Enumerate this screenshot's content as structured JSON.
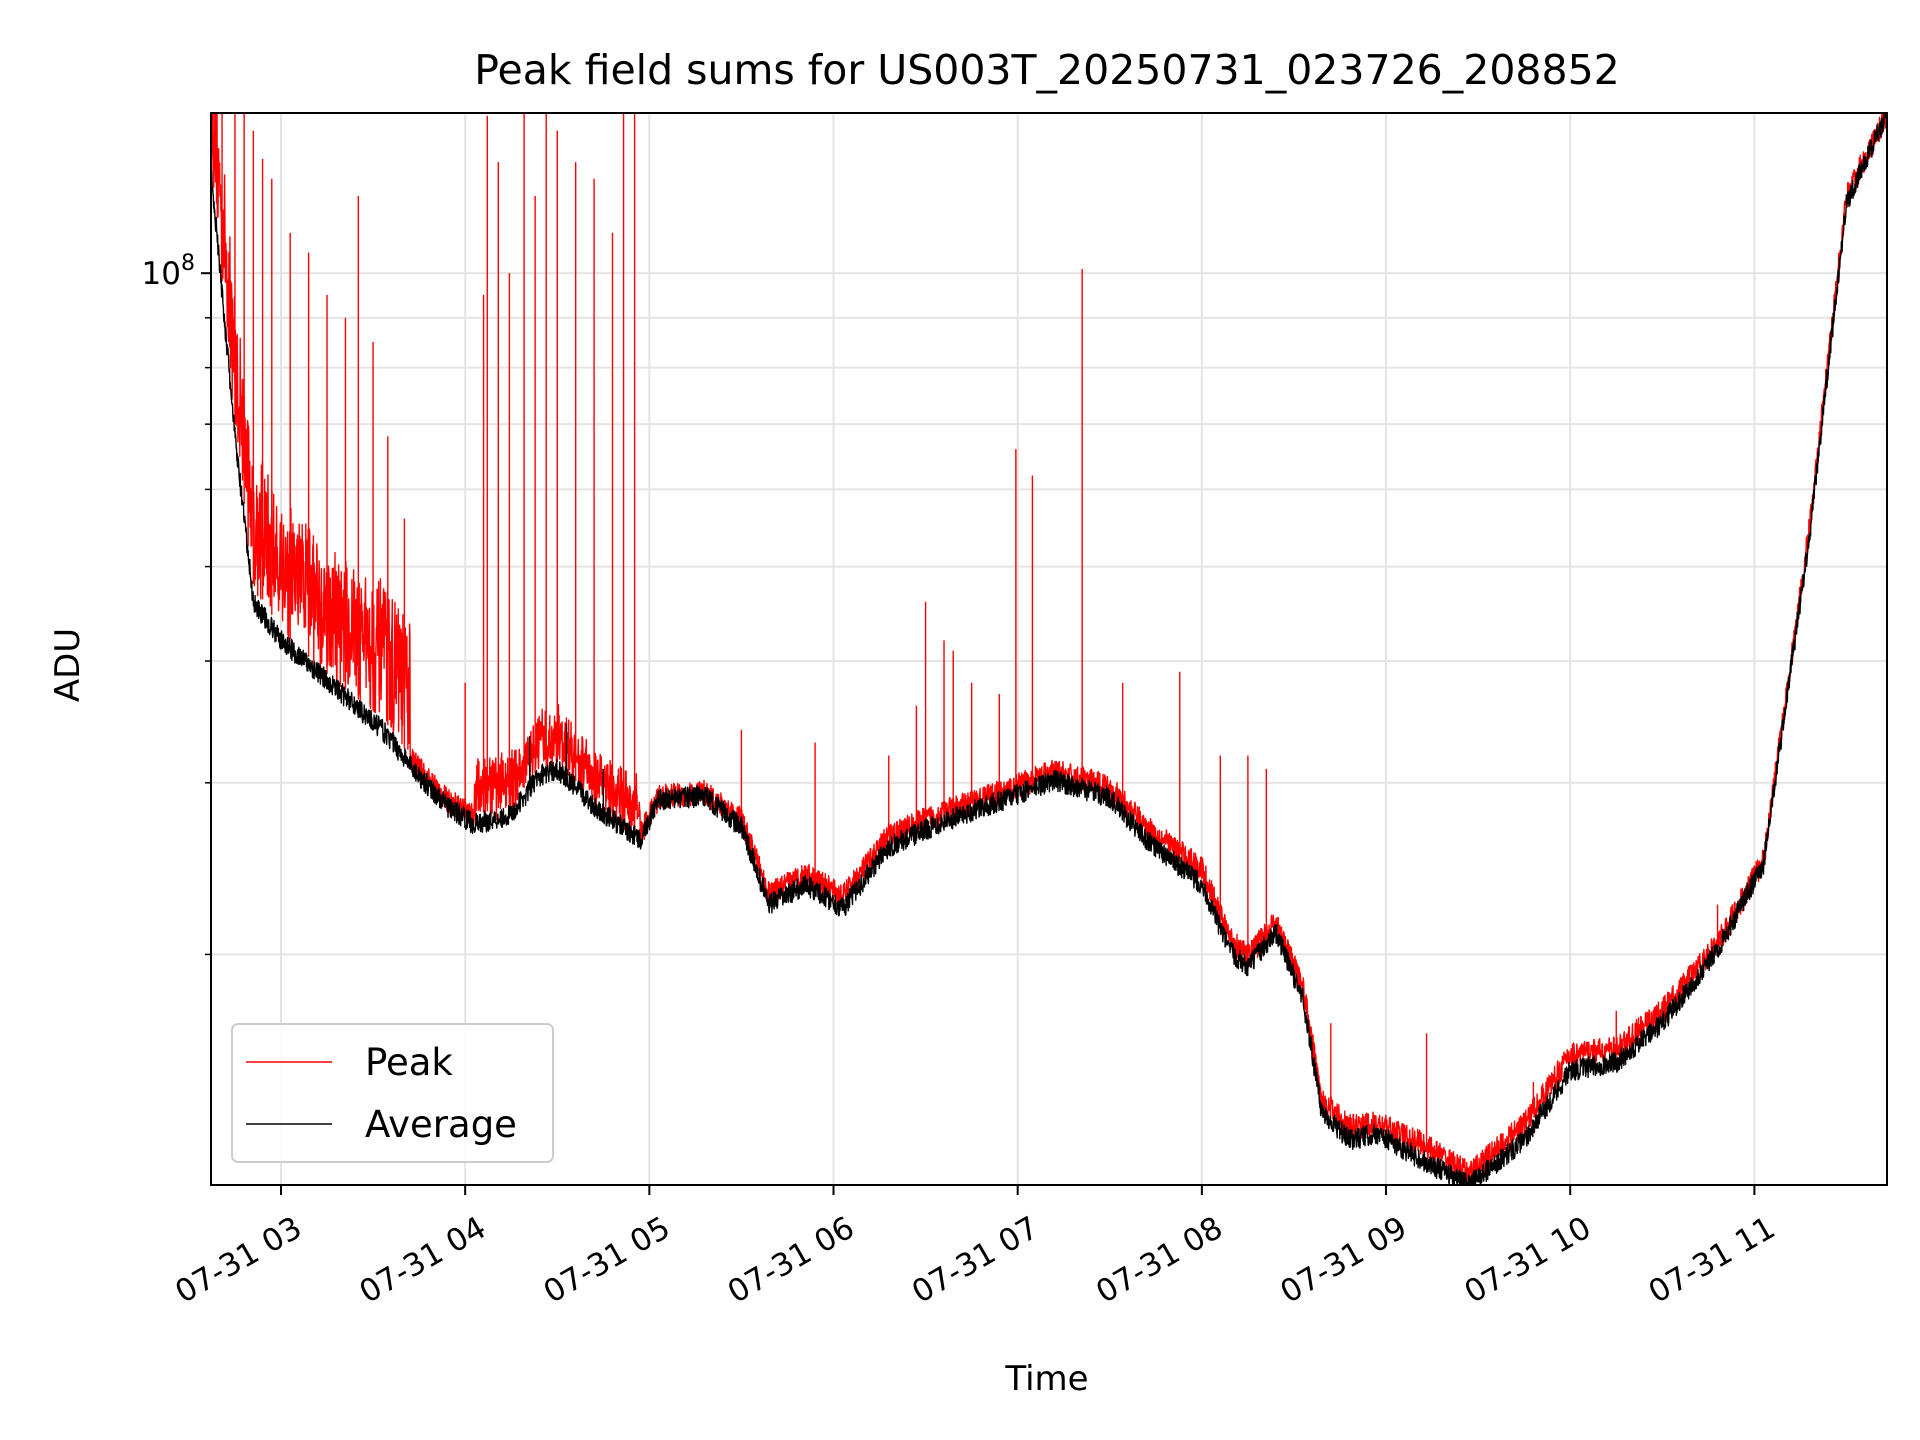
{
  "chart_data": {
    "type": "line",
    "title": "Peak field sums for US003T_20250731_023726_208852",
    "xlabel": "Time",
    "ylabel": "ADU",
    "yscale": "log",
    "grid": true,
    "legend_position": "lower-left",
    "x_tick_labels": [
      "07-31 03",
      "07-31 04",
      "07-31 05",
      "07-31 06",
      "07-31 07",
      "07-31 08",
      "07-31 09",
      "07-31 10",
      "07-31 11"
    ],
    "x_tick_hours": [
      3,
      4,
      5,
      6,
      7,
      8,
      9,
      10,
      11
    ],
    "xlim_hours": [
      2.62,
      11.72
    ],
    "y_major_tick": {
      "value": 100000000,
      "label": "10^8"
    },
    "ylim": [
      11600000,
      146000000
    ],
    "series": [
      {
        "name": "Peak",
        "color": "#ff0000",
        "baseline": [
          [
            2.62,
            131000000
          ],
          [
            2.75,
            70000000
          ],
          [
            2.85,
            48000000
          ],
          [
            3.0,
            43000000
          ],
          [
            3.3,
            38000000
          ],
          [
            3.55,
            35000000
          ],
          [
            3.75,
            31000000
          ],
          [
            3.9,
            28800000
          ],
          [
            4.05,
            27800000
          ],
          [
            4.25,
            28500000
          ],
          [
            4.4,
            31000000
          ],
          [
            4.5,
            31500000
          ],
          [
            4.7,
            28800000
          ],
          [
            4.95,
            26500000
          ],
          [
            5.05,
            29000000
          ],
          [
            5.3,
            29300000
          ],
          [
            5.5,
            27500000
          ],
          [
            5.65,
            23000000
          ],
          [
            5.85,
            24200000
          ],
          [
            6.05,
            22900000
          ],
          [
            6.3,
            26500000
          ],
          [
            6.6,
            28000000
          ],
          [
            6.9,
            29300000
          ],
          [
            7.2,
            30800000
          ],
          [
            7.5,
            29700000
          ],
          [
            7.7,
            27000000
          ],
          [
            8.0,
            24500000
          ],
          [
            8.15,
            20800000
          ],
          [
            8.25,
            19900000
          ],
          [
            8.4,
            21600000
          ],
          [
            8.55,
            18500000
          ],
          [
            8.65,
            14200000
          ],
          [
            8.8,
            13300000
          ],
          [
            8.95,
            13400000
          ],
          [
            9.2,
            12800000
          ],
          [
            9.45,
            11900000
          ],
          [
            9.75,
            13400000
          ],
          [
            10.0,
            15800000
          ],
          [
            10.25,
            16000000
          ],
          [
            10.5,
            17500000
          ],
          [
            10.8,
            20500000
          ],
          [
            11.05,
            25000000
          ],
          [
            11.3,
            55000000
          ],
          [
            11.5,
            120000000
          ],
          [
            11.72,
            146000000
          ]
        ],
        "spikes": [
          [
            2.68,
            146000000
          ],
          [
            2.75,
            146000000
          ],
          [
            2.8,
            146000000
          ],
          [
            2.85,
            140000000
          ],
          [
            2.9,
            131000000
          ],
          [
            2.95,
            125000000
          ],
          [
            3.05,
            110000000
          ],
          [
            3.15,
            105000000
          ],
          [
            3.25,
            95000000
          ],
          [
            3.35,
            90000000
          ],
          [
            3.42,
            120000000
          ],
          [
            3.5,
            85000000
          ],
          [
            3.58,
            68000000
          ],
          [
            3.67,
            56000000
          ],
          [
            4.0,
            38000000
          ],
          [
            4.1,
            95000000
          ],
          [
            4.12,
            145000000
          ],
          [
            4.18,
            130000000
          ],
          [
            4.24,
            100000000
          ],
          [
            4.32,
            146000000
          ],
          [
            4.38,
            120000000
          ],
          [
            4.44,
            146000000
          ],
          [
            4.5,
            140000000
          ],
          [
            4.6,
            130000000
          ],
          [
            4.7,
            125000000
          ],
          [
            4.8,
            110000000
          ],
          [
            4.86,
            146000000
          ],
          [
            4.92,
            146000000
          ],
          [
            5.5,
            34000000
          ],
          [
            5.9,
            33000000
          ],
          [
            6.3,
            32000000
          ],
          [
            6.45,
            36000000
          ],
          [
            6.5,
            46000000
          ],
          [
            6.6,
            42000000
          ],
          [
            6.65,
            41000000
          ],
          [
            6.75,
            38000000
          ],
          [
            6.9,
            37000000
          ],
          [
            6.99,
            66000000
          ],
          [
            7.08,
            62000000
          ],
          [
            7.35,
            101000000
          ],
          [
            7.57,
            38000000
          ],
          [
            7.88,
            39000000
          ],
          [
            8.1,
            32000000
          ],
          [
            8.25,
            32000000
          ],
          [
            8.35,
            31000000
          ],
          [
            8.7,
            17000000
          ],
          [
            9.22,
            16600000
          ],
          [
            9.8,
            14800000
          ],
          [
            10.25,
            17500000
          ],
          [
            10.8,
            22500000
          ]
        ]
      },
      {
        "name": "Average",
        "color": "#000000",
        "baseline": [
          [
            2.62,
            128000000
          ],
          [
            2.75,
            68000000
          ],
          [
            2.85,
            46000000
          ],
          [
            3.0,
            42000000
          ],
          [
            3.3,
            37500000
          ],
          [
            3.55,
            34000000
          ],
          [
            3.75,
            30500000
          ],
          [
            3.9,
            28400000
          ],
          [
            4.05,
            27200000
          ],
          [
            4.25,
            27800000
          ],
          [
            4.4,
            30500000
          ],
          [
            4.5,
            31000000
          ],
          [
            4.7,
            28400000
          ],
          [
            4.95,
            26200000
          ],
          [
            5.05,
            28800000
          ],
          [
            5.3,
            29100000
          ],
          [
            5.5,
            27000000
          ],
          [
            5.65,
            22500000
          ],
          [
            5.85,
            23600000
          ],
          [
            6.05,
            22300000
          ],
          [
            6.3,
            25800000
          ],
          [
            6.6,
            27400000
          ],
          [
            6.9,
            28700000
          ],
          [
            7.2,
            30200000
          ],
          [
            7.5,
            29000000
          ],
          [
            7.7,
            26200000
          ],
          [
            8.0,
            23600000
          ],
          [
            8.15,
            20200000
          ],
          [
            8.25,
            19400000
          ],
          [
            8.4,
            21100000
          ],
          [
            8.55,
            18000000
          ],
          [
            8.65,
            13800000
          ],
          [
            8.8,
            12900000
          ],
          [
            8.95,
            13100000
          ],
          [
            9.2,
            12300000
          ],
          [
            9.45,
            11600000
          ],
          [
            9.75,
            12900000
          ],
          [
            10.0,
            15200000
          ],
          [
            10.25,
            15500000
          ],
          [
            10.5,
            17000000
          ],
          [
            10.8,
            20200000
          ],
          [
            11.05,
            24800000
          ],
          [
            11.3,
            54000000
          ],
          [
            11.5,
            118000000
          ],
          [
            11.72,
            146000000
          ]
        ],
        "spikes": [
          [
            3.35,
            36500000
          ],
          [
            4.35,
            33500000
          ],
          [
            4.55,
            34500000
          ],
          [
            4.75,
            31000000
          ]
        ]
      }
    ]
  }
}
